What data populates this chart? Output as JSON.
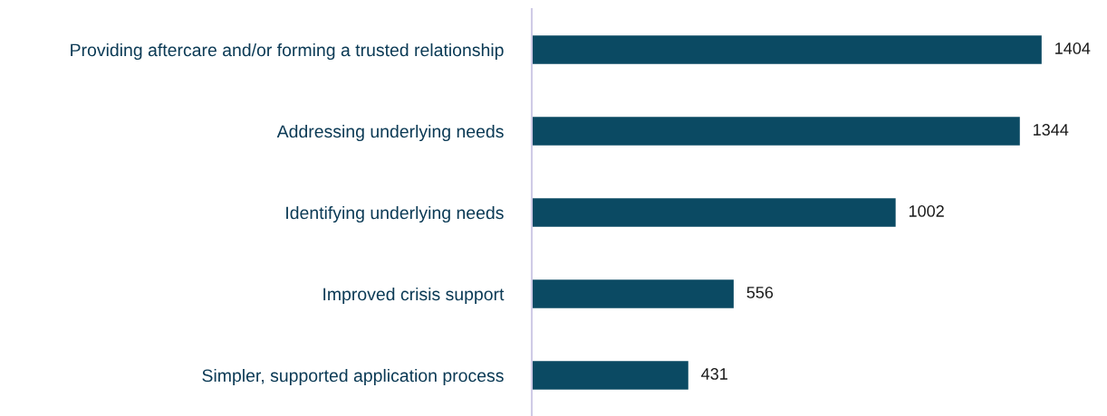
{
  "chart_data": {
    "type": "bar",
    "orientation": "horizontal",
    "categories": [
      "Providing aftercare and/or forming a trusted relationship",
      "Addressing underlying needs",
      "Identifying underlying needs",
      "Improved crisis support",
      "Simpler, supported application process"
    ],
    "values": [
      1404,
      1344,
      1002,
      556,
      431
    ],
    "color": "#0b4a63",
    "data_labels": true,
    "tick_labels": "y",
    "grid": false,
    "legend": false
  }
}
